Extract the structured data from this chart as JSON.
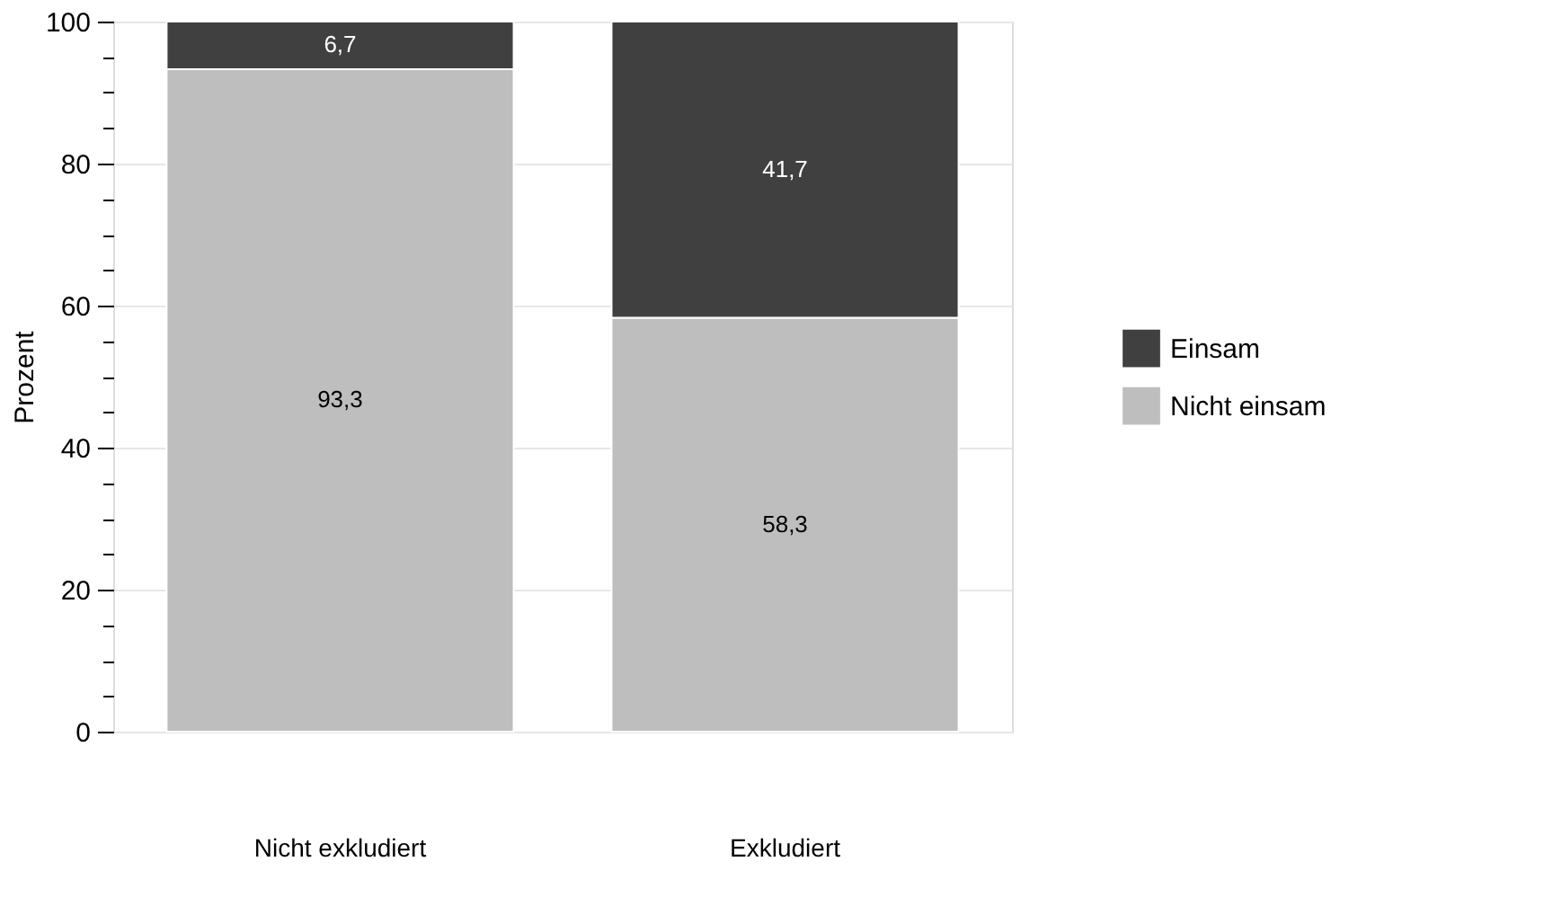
{
  "chart_data": {
    "type": "bar",
    "stacked": true,
    "ylabel": "Prozent",
    "categories": [
      "Nicht exkludiert",
      "Exkludiert"
    ],
    "series": [
      {
        "name": "Nicht einsam",
        "color": "#bebebe",
        "values": [
          93.3,
          58.3
        ],
        "value_labels": [
          "93,3",
          "58,3"
        ]
      },
      {
        "name": "Einsam",
        "color": "#404040",
        "values": [
          6.7,
          41.7
        ],
        "value_labels": [
          "6,7",
          "41,7"
        ]
      }
    ],
    "ylim": [
      0,
      100
    ],
    "yticks": [
      0,
      {
        "value": 5,
        "label": null
      },
      {
        "value": 10,
        "label": null
      },
      {
        "value": 15,
        "label": null
      },
      20,
      {
        "value": 25,
        "label": null
      },
      {
        "value": 30,
        "label": null
      },
      {
        "value": 35,
        "label": null
      },
      40,
      {
        "value": 45,
        "label": null
      },
      {
        "value": 50,
        "label": null
      },
      {
        "value": 55,
        "label": null
      },
      60,
      {
        "value": 65,
        "label": null
      },
      {
        "value": 70,
        "label": null
      },
      {
        "value": 75,
        "label": null
      },
      80,
      {
        "value": 85,
        "label": null
      },
      {
        "value": 90,
        "label": null
      },
      {
        "value": 95,
        "label": null
      },
      100
    ],
    "grid": "y",
    "legend": "right"
  }
}
